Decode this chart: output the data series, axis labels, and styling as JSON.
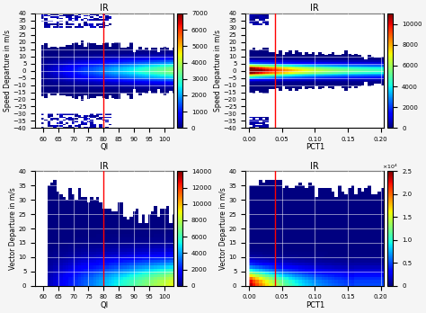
{
  "title": "IR",
  "subplots": [
    {
      "xlabel": "QI",
      "ylabel": "Speed Departure in m/s",
      "xmin": 57.5,
      "xmax": 103,
      "ymin": -40,
      "ymax": 40,
      "red_line_x": 80,
      "cbar_max": 7000,
      "cbar_ticks": [
        0,
        1000,
        2000,
        3000,
        4000,
        5000,
        6000,
        7000
      ],
      "xticks": [
        60,
        65,
        70,
        75,
        80,
        85,
        90,
        95,
        100
      ],
      "yticks": [
        -40,
        -35,
        -30,
        -25,
        -20,
        -15,
        -10,
        -5,
        0,
        5,
        10,
        15,
        20,
        25,
        30,
        35,
        40
      ],
      "type": "speed_QI"
    },
    {
      "xlabel": "PCT1",
      "ylabel": "Speed Departure in m/s",
      "xmin": -0.005,
      "xmax": 0.205,
      "ymin": -40,
      "ymax": 40,
      "red_line_x": 0.04,
      "cbar_max": 11000,
      "cbar_ticks": [
        0,
        2000,
        4000,
        6000,
        8000,
        10000
      ],
      "xticks": [
        0,
        0.05,
        0.1,
        0.15,
        0.2
      ],
      "yticks": [
        -40,
        -35,
        -30,
        -25,
        -20,
        -15,
        -10,
        -5,
        0,
        5,
        10,
        15,
        20,
        25,
        30,
        35,
        40
      ],
      "type": "speed_PCT1"
    },
    {
      "xlabel": "QI",
      "ylabel": "Vector Departure in m/s",
      "xmin": 57.5,
      "xmax": 103,
      "ymin": 0,
      "ymax": 40,
      "red_line_x": 80,
      "cbar_max": 14000,
      "cbar_ticks": [
        0,
        2000,
        4000,
        6000,
        8000,
        10000,
        12000,
        14000
      ],
      "xticks": [
        60,
        65,
        70,
        75,
        80,
        85,
        90,
        95,
        100
      ],
      "yticks": [
        0,
        5,
        10,
        15,
        20,
        25,
        30,
        35,
        40
      ],
      "type": "vector_QI"
    },
    {
      "xlabel": "PCT1",
      "ylabel": "Vector Departure in m/s",
      "xmin": -0.005,
      "xmax": 0.205,
      "ymin": 0,
      "ymax": 40,
      "red_line_x": 0.04,
      "cbar_max": 25000,
      "cbar_scale": 10000,
      "cbar_ticks_scaled": [
        0,
        0.5,
        1.0,
        1.5,
        2.0,
        2.5
      ],
      "xticks": [
        0,
        0.05,
        0.1,
        0.15,
        0.2
      ],
      "yticks": [
        0,
        5,
        10,
        15,
        20,
        25,
        30,
        35,
        40
      ],
      "type": "vector_PCT1"
    }
  ],
  "background_color": "#f0f0f0",
  "colormap": "jet"
}
